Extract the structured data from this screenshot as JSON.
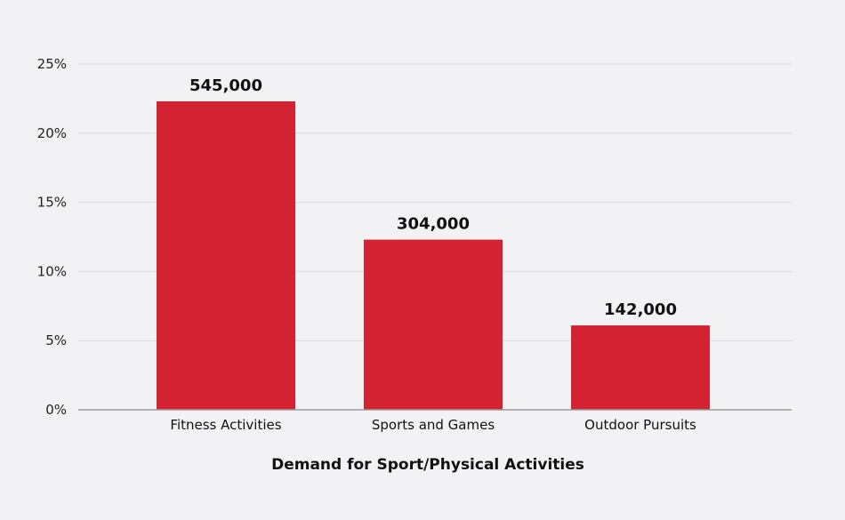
{
  "chart_data": {
    "type": "bar",
    "title": "",
    "xlabel": "Demand for Sport/Physical Activities",
    "ylabel": "",
    "categories": [
      "Fitness Activities",
      "Sports and Games",
      "Outdoor Pursuits"
    ],
    "values": [
      22.3,
      12.3,
      6.1
    ],
    "data_labels": [
      "545,000",
      "304,000",
      "142,000"
    ],
    "ylim": [
      0,
      25
    ],
    "yticks": [
      0,
      5,
      10,
      15,
      20,
      25
    ],
    "ytick_labels": [
      "0%",
      "5%",
      "10%",
      "15%",
      "20%",
      "25%"
    ],
    "grid": true,
    "legend": "none",
    "colors": {
      "bar": "#d32333",
      "grid": "#d9d9dc",
      "axis": "#9a9a9a",
      "background": "#f2f2f4"
    }
  }
}
